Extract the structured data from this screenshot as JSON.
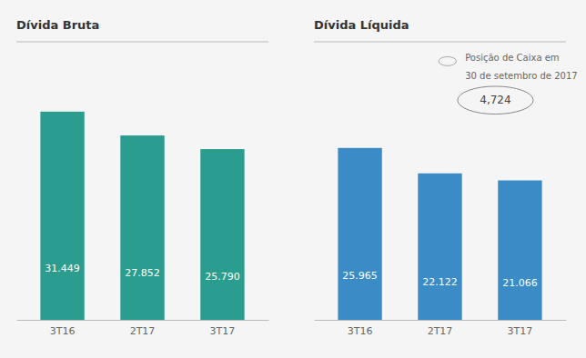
{
  "chart_data": [
    {
      "type": "bar",
      "title": "Dívida Bruta",
      "categories": [
        "3T16",
        "2T17",
        "3T17"
      ],
      "values": [
        31.449,
        27.852,
        25.79
      ],
      "value_labels": [
        "31.449",
        "27.852",
        "25.790"
      ],
      "data_labels": true,
      "color": "#2a9d8f",
      "ylim": [
        0,
        42
      ],
      "tick_labels": "x",
      "grid": false
    },
    {
      "type": "bar",
      "title": "Dívida Líquida",
      "categories": [
        "3T16",
        "2T17",
        "3T17"
      ],
      "values": [
        25.965,
        22.122,
        21.066
      ],
      "value_labels": [
        "25.965",
        "22.122",
        "21.066"
      ],
      "data_labels": true,
      "color": "#3b8bc7",
      "ylim": [
        0,
        42
      ],
      "tick_labels": "x",
      "grid": false,
      "annotations": [
        "Posição de Caixa em",
        "30 de setembro de 2017",
        "4,724"
      ]
    }
  ]
}
